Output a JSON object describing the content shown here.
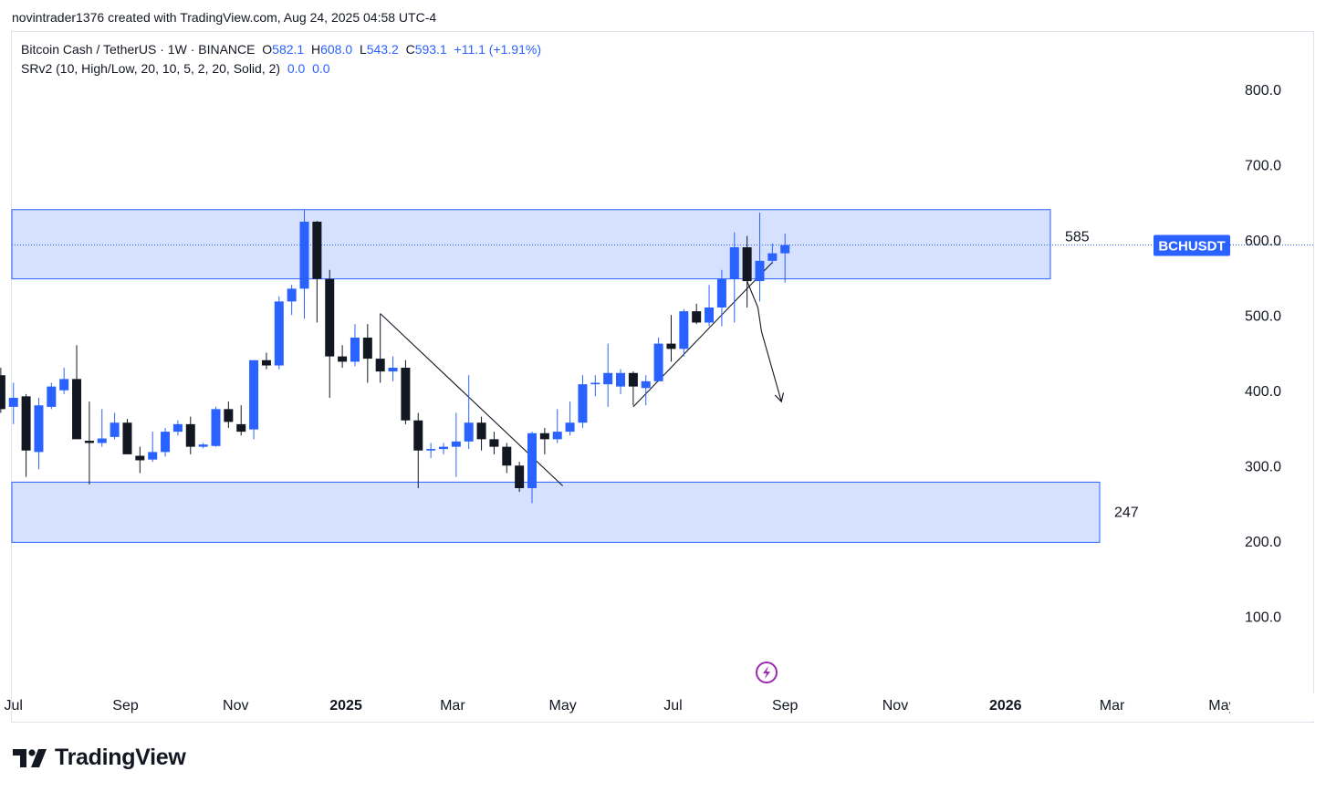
{
  "header": {
    "attribution": "novintrader1376 created with TradingView.com, Aug 24, 2025 04:58 UTC-4"
  },
  "legend": {
    "symbol_text": "Bitcoin Cash / TetherUS · 1W · BINANCE",
    "open_label": "O",
    "open": "582.1",
    "high_label": "H",
    "high": "608.0",
    "low_label": "L",
    "low": "543.2",
    "close_label": "C",
    "close": "593.1",
    "change": "+11.1 (+1.91%)",
    "indicator_text": "SRv2 (10, High/Low, 20, 10, 5, 2, 20, Solid, 2)",
    "indicator_v1": "0.0",
    "indicator_v2": "0.0"
  },
  "colors": {
    "bull": "#2962ff",
    "bear": "#131722",
    "zone_fill": "#d6e0ff",
    "zone_border": "#2962ff",
    "badge": "#2962ff",
    "grid_text": "#131722"
  },
  "brand": {
    "name": "TradingView",
    "icon": "tradingview-logo-icon"
  },
  "lightning_icon": "lightning-icon",
  "chart_data": {
    "type": "candlestick",
    "symbol": "BCHUSDT",
    "ylim": [
      0,
      870
    ],
    "yticks": [
      "800.0",
      "700.0",
      "600.0",
      "500.0",
      "400.0",
      "300.0",
      "200.0",
      "100.0"
    ],
    "ytick_values": [
      800,
      700,
      600,
      500,
      400,
      300,
      200,
      100
    ],
    "xticks": [
      {
        "label": "Jul",
        "x": "2024-07-01",
        "bold": false
      },
      {
        "label": "Sep",
        "x": "2024-09-01",
        "bold": false
      },
      {
        "label": "Nov",
        "x": "2024-11-01",
        "bold": false
      },
      {
        "label": "2025",
        "x": "2025-01-01",
        "bold": true
      },
      {
        "label": "Mar",
        "x": "2025-03-01",
        "bold": false
      },
      {
        "label": "May",
        "x": "2025-05-01",
        "bold": false
      },
      {
        "label": "Jul",
        "x": "2025-07-01",
        "bold": false
      },
      {
        "label": "Sep",
        "x": "2025-09-01",
        "bold": false
      },
      {
        "label": "Nov",
        "x": "2025-11-01",
        "bold": false
      },
      {
        "label": "2026",
        "x": "2026-01-01",
        "bold": true
      },
      {
        "label": "Mar",
        "x": "2026-03-01",
        "bold": false
      },
      {
        "label": "May",
        "x": "2026-05-01",
        "bold": false
      }
    ],
    "candles": [
      {
        "date": "2024-06-24",
        "o": 420,
        "h": 430,
        "l": 370,
        "c": 375
      },
      {
        "date": "2024-07-01",
        "o": 378,
        "h": 410,
        "l": 355,
        "c": 390
      },
      {
        "date": "2024-07-08",
        "o": 392,
        "h": 395,
        "l": 285,
        "c": 320
      },
      {
        "date": "2024-07-15",
        "o": 318,
        "h": 390,
        "l": 295,
        "c": 380
      },
      {
        "date": "2024-07-22",
        "o": 378,
        "h": 410,
        "l": 375,
        "c": 405
      },
      {
        "date": "2024-07-29",
        "o": 400,
        "h": 430,
        "l": 395,
        "c": 415
      },
      {
        "date": "2024-08-05",
        "o": 415,
        "h": 460,
        "l": 335,
        "c": 335
      },
      {
        "date": "2024-08-12",
        "o": 333,
        "h": 385,
        "l": 275,
        "c": 330
      },
      {
        "date": "2024-08-19",
        "o": 330,
        "h": 375,
        "l": 325,
        "c": 336
      },
      {
        "date": "2024-08-26",
        "o": 338,
        "h": 370,
        "l": 335,
        "c": 357
      },
      {
        "date": "2024-09-02",
        "o": 357,
        "h": 362,
        "l": 315,
        "c": 315
      },
      {
        "date": "2024-09-09",
        "o": 313,
        "h": 325,
        "l": 290,
        "c": 307
      },
      {
        "date": "2024-09-16",
        "o": 308,
        "h": 345,
        "l": 305,
        "c": 318
      },
      {
        "date": "2024-09-23",
        "o": 318,
        "h": 350,
        "l": 312,
        "c": 345
      },
      {
        "date": "2024-09-30",
        "o": 345,
        "h": 360,
        "l": 340,
        "c": 355
      },
      {
        "date": "2024-10-07",
        "o": 355,
        "h": 365,
        "l": 315,
        "c": 325
      },
      {
        "date": "2024-10-14",
        "o": 325,
        "h": 330,
        "l": 323,
        "c": 328
      },
      {
        "date": "2024-10-21",
        "o": 326,
        "h": 378,
        "l": 325,
        "c": 375
      },
      {
        "date": "2024-10-28",
        "o": 375,
        "h": 385,
        "l": 350,
        "c": 358
      },
      {
        "date": "2024-11-04",
        "o": 355,
        "h": 380,
        "l": 340,
        "c": 345
      },
      {
        "date": "2024-11-11",
        "o": 348,
        "h": 440,
        "l": 335,
        "c": 440
      },
      {
        "date": "2024-11-18",
        "o": 440,
        "h": 450,
        "l": 428,
        "c": 433
      },
      {
        "date": "2024-11-25",
        "o": 433,
        "h": 525,
        "l": 428,
        "c": 518
      },
      {
        "date": "2024-12-02",
        "o": 518,
        "h": 540,
        "l": 500,
        "c": 535
      },
      {
        "date": "2024-12-09",
        "o": 535,
        "h": 640,
        "l": 495,
        "c": 624
      },
      {
        "date": "2024-12-16",
        "o": 624,
        "h": 625,
        "l": 490,
        "c": 548
      },
      {
        "date": "2024-12-23",
        "o": 548,
        "h": 560,
        "l": 390,
        "c": 445
      },
      {
        "date": "2024-12-30",
        "o": 445,
        "h": 460,
        "l": 430,
        "c": 438
      },
      {
        "date": "2025-01-06",
        "o": 438,
        "h": 488,
        "l": 432,
        "c": 470
      },
      {
        "date": "2025-01-13",
        "o": 470,
        "h": 488,
        "l": 410,
        "c": 442
      },
      {
        "date": "2025-01-20",
        "o": 442,
        "h": 502,
        "l": 410,
        "c": 425
      },
      {
        "date": "2025-01-27",
        "o": 425,
        "h": 445,
        "l": 412,
        "c": 430
      },
      {
        "date": "2025-02-03",
        "o": 430,
        "h": 440,
        "l": 355,
        "c": 360
      },
      {
        "date": "2025-02-10",
        "o": 360,
        "h": 370,
        "l": 270,
        "c": 320
      },
      {
        "date": "2025-02-17",
        "o": 320,
        "h": 330,
        "l": 310,
        "c": 322
      },
      {
        "date": "2025-02-24",
        "o": 322,
        "h": 330,
        "l": 315,
        "c": 325
      },
      {
        "date": "2025-03-03",
        "o": 325,
        "h": 370,
        "l": 285,
        "c": 332
      },
      {
        "date": "2025-03-10",
        "o": 332,
        "h": 420,
        "l": 322,
        "c": 357
      },
      {
        "date": "2025-03-17",
        "o": 357,
        "h": 365,
        "l": 320,
        "c": 335
      },
      {
        "date": "2025-03-24",
        "o": 335,
        "h": 345,
        "l": 315,
        "c": 325
      },
      {
        "date": "2025-03-31",
        "o": 325,
        "h": 330,
        "l": 290,
        "c": 300
      },
      {
        "date": "2025-04-07",
        "o": 300,
        "h": 305,
        "l": 265,
        "c": 270
      },
      {
        "date": "2025-04-14",
        "o": 270,
        "h": 345,
        "l": 250,
        "c": 343
      },
      {
        "date": "2025-04-21",
        "o": 343,
        "h": 350,
        "l": 315,
        "c": 335
      },
      {
        "date": "2025-04-28",
        "o": 335,
        "h": 375,
        "l": 330,
        "c": 345
      },
      {
        "date": "2025-05-05",
        "o": 345,
        "h": 385,
        "l": 340,
        "c": 357
      },
      {
        "date": "2025-05-12",
        "o": 357,
        "h": 420,
        "l": 350,
        "c": 408
      },
      {
        "date": "2025-05-19",
        "o": 408,
        "h": 420,
        "l": 392,
        "c": 410
      },
      {
        "date": "2025-05-26",
        "o": 408,
        "h": 462,
        "l": 378,
        "c": 423
      },
      {
        "date": "2025-06-02",
        "o": 405,
        "h": 428,
        "l": 395,
        "c": 423
      },
      {
        "date": "2025-06-09",
        "o": 423,
        "h": 425,
        "l": 380,
        "c": 405
      },
      {
        "date": "2025-06-16",
        "o": 403,
        "h": 420,
        "l": 380,
        "c": 412
      },
      {
        "date": "2025-06-23",
        "o": 412,
        "h": 470,
        "l": 412,
        "c": 462
      },
      {
        "date": "2025-06-30",
        "o": 462,
        "h": 500,
        "l": 438,
        "c": 455
      },
      {
        "date": "2025-07-07",
        "o": 455,
        "h": 508,
        "l": 445,
        "c": 505
      },
      {
        "date": "2025-07-14",
        "o": 505,
        "h": 515,
        "l": 488,
        "c": 490
      },
      {
        "date": "2025-07-21",
        "o": 490,
        "h": 540,
        "l": 485,
        "c": 510
      },
      {
        "date": "2025-07-28",
        "o": 510,
        "h": 560,
        "l": 485,
        "c": 548
      },
      {
        "date": "2025-08-04",
        "o": 548,
        "h": 610,
        "l": 490,
        "c": 590
      },
      {
        "date": "2025-08-11",
        "o": 590,
        "h": 605,
        "l": 510,
        "c": 545
      },
      {
        "date": "2025-08-18",
        "o": 545,
        "h": 636,
        "l": 518,
        "c": 572
      },
      {
        "date": "2025-08-25",
        "o": 572,
        "h": 595,
        "l": 568,
        "c": 582
      },
      {
        "date": "2025-09-01",
        "o": 582,
        "h": 608,
        "l": 543,
        "c": 593
      }
    ],
    "zones": [
      {
        "label": "585",
        "top": 640,
        "bottom": 548
      },
      {
        "label": "247",
        "top": 278,
        "bottom": 198
      }
    ],
    "trendlines": [
      {
        "from": {
          "date": "2025-01-20",
          "price": 502
        },
        "to": {
          "date": "2025-05-01",
          "price": 273
        }
      },
      {
        "from": {
          "date": "2025-06-09",
          "price": 378
        },
        "to": {
          "date": "2025-08-25",
          "price": 570
        }
      }
    ],
    "arrow_path": [
      {
        "date": "2025-08-11",
        "price": 545
      },
      {
        "date": "2025-08-17",
        "price": 510
      },
      {
        "date": "2025-08-19",
        "price": 478
      },
      {
        "date": "2025-08-30",
        "price": 385
      }
    ],
    "last_price_label": "BCHUSDT",
    "last_price": 593.1
  }
}
